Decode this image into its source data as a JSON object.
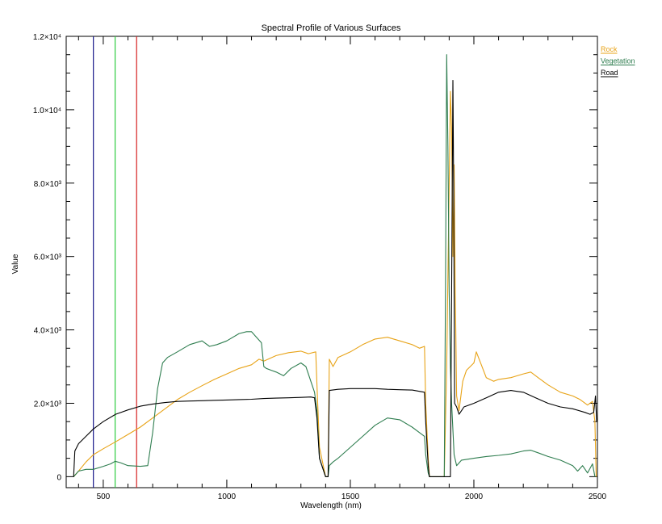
{
  "chart_data": {
    "type": "line",
    "title": "Spectral Profile of Various Surfaces",
    "xlabel": "Wavelength (nm)",
    "ylabel": "Value",
    "xlim": [
      350,
      2500
    ],
    "ylim": [
      -300,
      12000
    ],
    "xticks": [
      500,
      1000,
      1500,
      2000,
      2500
    ],
    "yticks": [
      0,
      2000,
      4000,
      6000,
      8000,
      10000,
      12000
    ],
    "ytick_labels": [
      "0",
      "2.0×10³",
      "4.0×10³",
      "6.0×10³",
      "8.0×10³",
      "1.0×10⁴",
      "1.2×10⁴"
    ],
    "xtick_labels": [
      "500",
      "1000",
      "1500",
      "2000",
      "2500"
    ],
    "legend_position": "top-right, outside plot",
    "markers": [
      {
        "x": 460,
        "color": "#1a1a8c"
      },
      {
        "x": 548,
        "color": "#2ecc40"
      },
      {
        "x": 635,
        "color": "#d62020"
      }
    ],
    "series": [
      {
        "name": "Rock",
        "color": "#e8a317",
        "points": [
          [
            380,
            0
          ],
          [
            400,
            150
          ],
          [
            430,
            400
          ],
          [
            460,
            600
          ],
          [
            500,
            760
          ],
          [
            550,
            950
          ],
          [
            600,
            1150
          ],
          [
            650,
            1350
          ],
          [
            700,
            1600
          ],
          [
            750,
            1850
          ],
          [
            800,
            2100
          ],
          [
            850,
            2300
          ],
          [
            900,
            2480
          ],
          [
            950,
            2650
          ],
          [
            1000,
            2800
          ],
          [
            1050,
            2950
          ],
          [
            1100,
            3050
          ],
          [
            1130,
            3200
          ],
          [
            1150,
            3150
          ],
          [
            1200,
            3300
          ],
          [
            1250,
            3380
          ],
          [
            1300,
            3420
          ],
          [
            1330,
            3350
          ],
          [
            1360,
            3400
          ],
          [
            1365,
            2500
          ],
          [
            1375,
            800
          ],
          [
            1400,
            0
          ],
          [
            1410,
            0
          ],
          [
            1415,
            3200
          ],
          [
            1430,
            3000
          ],
          [
            1450,
            3250
          ],
          [
            1500,
            3400
          ],
          [
            1550,
            3600
          ],
          [
            1600,
            3750
          ],
          [
            1650,
            3800
          ],
          [
            1700,
            3700
          ],
          [
            1750,
            3600
          ],
          [
            1780,
            3500
          ],
          [
            1800,
            3550
          ],
          [
            1805,
            2000
          ],
          [
            1815,
            500
          ],
          [
            1820,
            0
          ],
          [
            1880,
            0
          ],
          [
            1890,
            3000
          ],
          [
            1900,
            8000
          ],
          [
            1905,
            10500
          ],
          [
            1910,
            9500
          ],
          [
            1915,
            6000
          ],
          [
            1920,
            8500
          ],
          [
            1925,
            5000
          ],
          [
            1930,
            2200
          ],
          [
            1940,
            1800
          ],
          [
            1955,
            2600
          ],
          [
            1970,
            2900
          ],
          [
            2000,
            3100
          ],
          [
            2010,
            3400
          ],
          [
            2030,
            3050
          ],
          [
            2050,
            2700
          ],
          [
            2080,
            2600
          ],
          [
            2100,
            2650
          ],
          [
            2150,
            2700
          ],
          [
            2200,
            2800
          ],
          [
            2230,
            2850
          ],
          [
            2260,
            2700
          ],
          [
            2300,
            2500
          ],
          [
            2350,
            2300
          ],
          [
            2400,
            2200
          ],
          [
            2430,
            2100
          ],
          [
            2460,
            1950
          ],
          [
            2480,
            2050
          ],
          [
            2490,
            1500
          ],
          [
            2495,
            0
          ]
        ]
      },
      {
        "name": "Vegetation",
        "color": "#2e7d4f",
        "points": [
          [
            380,
            0
          ],
          [
            400,
            150
          ],
          [
            430,
            200
          ],
          [
            460,
            200
          ],
          [
            500,
            280
          ],
          [
            530,
            350
          ],
          [
            548,
            420
          ],
          [
            570,
            380
          ],
          [
            600,
            300
          ],
          [
            650,
            280
          ],
          [
            680,
            300
          ],
          [
            700,
            1200
          ],
          [
            720,
            2400
          ],
          [
            740,
            3100
          ],
          [
            760,
            3250
          ],
          [
            800,
            3400
          ],
          [
            850,
            3600
          ],
          [
            900,
            3700
          ],
          [
            930,
            3550
          ],
          [
            960,
            3600
          ],
          [
            1000,
            3700
          ],
          [
            1050,
            3900
          ],
          [
            1080,
            3950
          ],
          [
            1100,
            3950
          ],
          [
            1120,
            3800
          ],
          [
            1140,
            3650
          ],
          [
            1150,
            3000
          ],
          [
            1160,
            2950
          ],
          [
            1180,
            2900
          ],
          [
            1200,
            2850
          ],
          [
            1230,
            2750
          ],
          [
            1260,
            2950
          ],
          [
            1300,
            3100
          ],
          [
            1320,
            3000
          ],
          [
            1340,
            2600
          ],
          [
            1355,
            2300
          ],
          [
            1365,
            1800
          ],
          [
            1375,
            500
          ],
          [
            1400,
            0
          ],
          [
            1410,
            0
          ],
          [
            1415,
            300
          ],
          [
            1430,
            400
          ],
          [
            1450,
            500
          ],
          [
            1500,
            800
          ],
          [
            1550,
            1100
          ],
          [
            1600,
            1400
          ],
          [
            1650,
            1600
          ],
          [
            1700,
            1550
          ],
          [
            1750,
            1350
          ],
          [
            1780,
            1200
          ],
          [
            1800,
            1100
          ],
          [
            1805,
            600
          ],
          [
            1815,
            100
          ],
          [
            1820,
            0
          ],
          [
            1880,
            0
          ],
          [
            1885,
            5000
          ],
          [
            1890,
            11500
          ],
          [
            1895,
            9000
          ],
          [
            1900,
            5000
          ],
          [
            1905,
            3000
          ],
          [
            1910,
            2000
          ],
          [
            1920,
            600
          ],
          [
            1930,
            300
          ],
          [
            1950,
            450
          ],
          [
            2000,
            500
          ],
          [
            2050,
            550
          ],
          [
            2100,
            580
          ],
          [
            2150,
            620
          ],
          [
            2200,
            700
          ],
          [
            2230,
            720
          ],
          [
            2260,
            650
          ],
          [
            2300,
            550
          ],
          [
            2350,
            450
          ],
          [
            2400,
            300
          ],
          [
            2420,
            150
          ],
          [
            2440,
            300
          ],
          [
            2460,
            100
          ],
          [
            2480,
            350
          ],
          [
            2490,
            0
          ]
        ]
      },
      {
        "name": "Road",
        "color": "#000000",
        "points": [
          [
            380,
            0
          ],
          [
            385,
            700
          ],
          [
            400,
            900
          ],
          [
            430,
            1100
          ],
          [
            460,
            1300
          ],
          [
            500,
            1500
          ],
          [
            550,
            1700
          ],
          [
            600,
            1820
          ],
          [
            650,
            1920
          ],
          [
            700,
            1980
          ],
          [
            750,
            2020
          ],
          [
            800,
            2050
          ],
          [
            850,
            2060
          ],
          [
            900,
            2070
          ],
          [
            950,
            2080
          ],
          [
            1000,
            2090
          ],
          [
            1050,
            2100
          ],
          [
            1100,
            2110
          ],
          [
            1150,
            2130
          ],
          [
            1200,
            2140
          ],
          [
            1250,
            2150
          ],
          [
            1300,
            2160
          ],
          [
            1340,
            2170
          ],
          [
            1355,
            2150
          ],
          [
            1365,
            1600
          ],
          [
            1375,
            500
          ],
          [
            1400,
            0
          ],
          [
            1410,
            0
          ],
          [
            1415,
            2350
          ],
          [
            1450,
            2380
          ],
          [
            1500,
            2400
          ],
          [
            1550,
            2400
          ],
          [
            1600,
            2400
          ],
          [
            1650,
            2380
          ],
          [
            1700,
            2370
          ],
          [
            1750,
            2360
          ],
          [
            1800,
            2300
          ],
          [
            1805,
            1500
          ],
          [
            1815,
            300
          ],
          [
            1820,
            0
          ],
          [
            1905,
            0
          ],
          [
            1910,
            5000
          ],
          [
            1915,
            10800
          ],
          [
            1918,
            8000
          ],
          [
            1922,
            2000
          ],
          [
            1930,
            1900
          ],
          [
            1940,
            1700
          ],
          [
            1950,
            1800
          ],
          [
            1960,
            1900
          ],
          [
            2000,
            2000
          ],
          [
            2050,
            2150
          ],
          [
            2100,
            2300
          ],
          [
            2150,
            2350
          ],
          [
            2200,
            2300
          ],
          [
            2250,
            2150
          ],
          [
            2300,
            2000
          ],
          [
            2350,
            1900
          ],
          [
            2400,
            1850
          ],
          [
            2450,
            1750
          ],
          [
            2470,
            1700
          ],
          [
            2485,
            1750
          ],
          [
            2492,
            2200
          ],
          [
            2497,
            1500
          ]
        ]
      }
    ]
  }
}
